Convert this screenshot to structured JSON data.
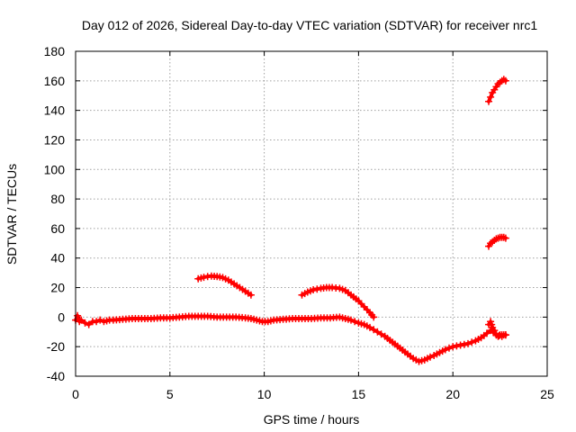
{
  "chart_data": {
    "type": "scatter",
    "title": "Day 012 of 2026, Sidereal Day-to-day VTEC variation (SDTVAR) for receiver nrc1",
    "xlabel": "GPS time / hours",
    "ylabel": "SDTVAR / TECUs",
    "xlim": [
      0,
      25
    ],
    "ylim": [
      -40,
      180
    ],
    "xticks": [
      0,
      5,
      10,
      15,
      20,
      25
    ],
    "yticks": [
      -40,
      -20,
      0,
      20,
      40,
      60,
      80,
      100,
      120,
      140,
      160,
      180
    ],
    "grid": true,
    "marker": "plus",
    "colors": {
      "series": "#ff0000",
      "grid": "#a0a0a0",
      "axis": "#000000"
    },
    "series": [
      {
        "name": "baseline",
        "x": [
          0.0,
          0.1,
          0.2,
          0.3,
          0.5,
          0.7,
          0.9,
          1.1,
          1.3,
          1.5,
          1.8,
          2.0,
          2.5,
          3.0,
          3.5,
          4.0,
          4.5,
          5.0,
          5.5,
          6.0,
          6.5,
          7.0,
          7.5,
          8.0,
          8.5,
          9.0,
          9.3,
          9.6,
          9.9,
          10.2,
          10.5,
          11.0,
          11.5,
          12.0,
          12.5,
          13.0,
          13.5,
          14.0,
          14.3,
          14.6,
          15.0,
          15.3,
          15.6,
          16.0,
          16.4,
          16.8,
          17.2,
          17.6,
          17.9,
          18.2,
          18.5,
          18.8,
          19.0,
          19.3,
          19.6,
          20.0,
          20.4,
          20.8,
          21.2,
          21.5,
          21.8,
          22.0,
          22.3,
          22.6,
          22.8
        ],
        "y": [
          -2,
          1,
          -3,
          -2,
          -4,
          -5,
          -3,
          -3,
          -2,
          -3,
          -2,
          -2,
          -1.5,
          -1,
          -1,
          -1,
          -0.5,
          -0.5,
          0,
          0.5,
          0.5,
          0.5,
          0,
          0,
          0,
          -0.5,
          -1,
          -2,
          -3,
          -3,
          -2,
          -1.5,
          -1,
          -1,
          -1,
          -0.5,
          -0.5,
          0,
          -1,
          -2,
          -4,
          -5,
          -7,
          -10,
          -13,
          -17,
          -21,
          -25,
          -28,
          -30,
          -29,
          -27,
          -26,
          -24,
          -22,
          -20,
          -19,
          -18,
          -16,
          -14,
          -11,
          -9,
          -12,
          -13,
          -12
        ]
      },
      {
        "name": "arc-1",
        "x": [
          6.5,
          6.8,
          7.0,
          7.2,
          7.5,
          7.8,
          8.1,
          8.4,
          8.7,
          9.0,
          9.3
        ],
        "y": [
          26,
          27,
          27.5,
          27.8,
          27.5,
          26.8,
          25,
          22.5,
          20,
          17.5,
          15
        ]
      },
      {
        "name": "arc-2",
        "x": [
          12.0,
          12.3,
          12.6,
          13.0,
          13.3,
          13.6,
          14.0,
          14.3,
          14.6,
          15.0,
          15.3,
          15.6,
          15.8
        ],
        "y": [
          15,
          17,
          18.5,
          19.5,
          20,
          20,
          19.5,
          18,
          15,
          11,
          7,
          3,
          0
        ]
      },
      {
        "name": "jump-segment",
        "x": [
          21.9,
          22.0,
          22.1,
          22.2,
          22.3,
          22.4,
          22.5,
          22.6,
          22.7,
          22.8
        ],
        "y": [
          -5,
          -3,
          -7,
          -9,
          -12,
          -13,
          -12,
          -12,
          -12,
          -12
        ]
      },
      {
        "name": "arc-3",
        "x": [
          21.9,
          22.0,
          22.1,
          22.2,
          22.3,
          22.4,
          22.5,
          22.6,
          22.7,
          22.8
        ],
        "y": [
          48,
          50,
          51,
          52,
          53,
          53.5,
          54,
          54,
          54,
          53.5
        ]
      },
      {
        "name": "arc-4",
        "x": [
          21.9,
          22.0,
          22.1,
          22.2,
          22.3,
          22.4,
          22.5,
          22.6,
          22.7,
          22.8
        ],
        "y": [
          146,
          149,
          152,
          154,
          156,
          158,
          159,
          160,
          161,
          160
        ]
      }
    ]
  }
}
